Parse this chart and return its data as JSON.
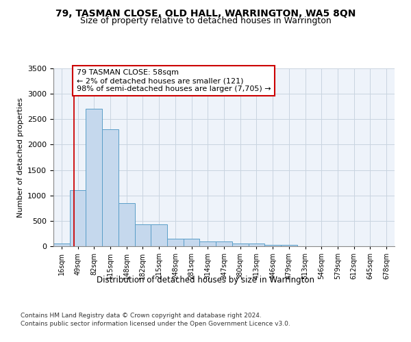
{
  "title": "79, TASMAN CLOSE, OLD HALL, WARRINGTON, WA5 8QN",
  "subtitle": "Size of property relative to detached houses in Warrington",
  "xlabel": "Distribution of detached houses by size in Warrington",
  "ylabel": "Number of detached properties",
  "bin_labels": [
    "16sqm",
    "49sqm",
    "82sqm",
    "115sqm",
    "148sqm",
    "182sqm",
    "215sqm",
    "248sqm",
    "281sqm",
    "314sqm",
    "347sqm",
    "380sqm",
    "413sqm",
    "446sqm",
    "479sqm",
    "513sqm",
    "546sqm",
    "579sqm",
    "612sqm",
    "645sqm",
    "678sqm"
  ],
  "bar_heights": [
    50,
    1100,
    2700,
    2300,
    850,
    430,
    430,
    150,
    150,
    90,
    90,
    50,
    50,
    30,
    30,
    5,
    5,
    0,
    0,
    0,
    0
  ],
  "bar_color": "#c5d8ed",
  "bar_edge_color": "#5a9ec8",
  "grid_color": "#c8d4e0",
  "background_color": "#eef3fa",
  "property_line_color": "#cc0000",
  "annotation_text": "79 TASMAN CLOSE: 58sqm\n← 2% of detached houses are smaller (121)\n98% of semi-detached houses are larger (7,705) →",
  "annotation_box_color": "#ffffff",
  "annotation_box_edge": "#cc0000",
  "ylim": [
    0,
    3500
  ],
  "footer_line1": "Contains HM Land Registry data © Crown copyright and database right 2024.",
  "footer_line2": "Contains public sector information licensed under the Open Government Licence v3.0.",
  "title_fontsize": 10,
  "subtitle_fontsize": 9,
  "annotation_fontsize": 8,
  "footer_fontsize": 6.5,
  "ylabel_fontsize": 8,
  "xlabel_fontsize": 8.5
}
